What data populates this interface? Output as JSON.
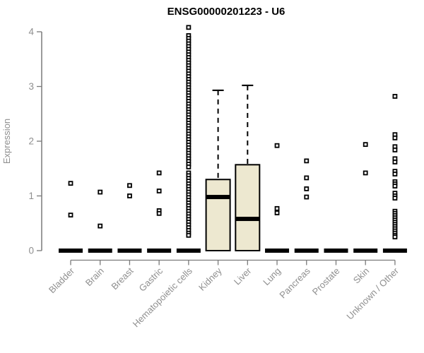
{
  "page": {
    "background": "#ffffff"
  },
  "chart_data": {
    "type": "boxplot",
    "title": "ENSG00000201223 - U6",
    "ylabel": "Expression",
    "xlabel": "",
    "ylim": [
      -0.16,
      4.23
    ],
    "yticks": [
      0,
      1,
      2,
      3,
      4
    ],
    "grid": false,
    "legend": "none",
    "categories": [
      "Bladder",
      "Brain",
      "Breast",
      "Gastric",
      "Hematopoietic cells",
      "Kidney",
      "Liver",
      "Lung",
      "Pancreas",
      "Prostate",
      "Skin",
      "Unknown / Other"
    ],
    "series": [
      {
        "name": "Bladder",
        "q1": 0,
        "median": 0,
        "q3": 0,
        "whisker_low": 0,
        "whisker_high": 0,
        "outliers": [
          1.23,
          0.65
        ]
      },
      {
        "name": "Brain",
        "q1": 0,
        "median": 0,
        "q3": 0,
        "whisker_low": 0,
        "whisker_high": 0,
        "outliers": [
          1.07,
          0.45
        ]
      },
      {
        "name": "Breast",
        "q1": 0,
        "median": 0,
        "q3": 0,
        "whisker_low": 0,
        "whisker_high": 0,
        "outliers": [
          1.19,
          1.0
        ]
      },
      {
        "name": "Gastric",
        "q1": 0,
        "median": 0,
        "q3": 0,
        "whisker_low": 0,
        "whisker_high": 0,
        "outliers": [
          1.42,
          1.09,
          0.73,
          0.68
        ]
      },
      {
        "name": "Hematopoietic cells",
        "q1": 0,
        "median": 0,
        "q3": 0,
        "whisker_low": 0,
        "whisker_high": 0,
        "outliers": [
          4.08,
          3.93,
          3.88,
          3.83,
          3.78,
          3.73,
          3.68,
          3.63,
          3.58,
          3.53,
          3.48,
          3.43,
          3.38,
          3.33,
          3.28,
          3.23,
          3.18,
          3.13,
          3.08,
          3.03,
          2.98,
          2.93,
          2.88,
          2.83,
          2.78,
          2.73,
          2.68,
          2.63,
          2.58,
          2.53,
          2.48,
          2.43,
          2.38,
          2.33,
          2.28,
          2.23,
          2.18,
          2.13,
          2.08,
          2.03,
          1.98,
          1.93,
          1.88,
          1.83,
          1.78,
          1.73,
          1.68,
          1.63,
          1.58,
          1.53,
          1.42,
          1.37,
          1.32,
          1.27,
          1.22,
          1.17,
          1.12,
          1.07,
          1.02,
          0.97,
          0.92,
          0.87,
          0.82,
          0.77,
          0.72,
          0.67,
          0.62,
          0.57,
          0.52,
          0.47,
          0.42,
          0.37,
          0.32,
          0.28
        ]
      },
      {
        "name": "Kidney",
        "q1": 0,
        "median": 0.98,
        "q3": 1.3,
        "whisker_low": 0,
        "whisker_high": 2.93,
        "outliers": []
      },
      {
        "name": "Liver",
        "q1": 0,
        "median": 0.58,
        "q3": 1.57,
        "whisker_low": 0,
        "whisker_high": 3.02,
        "outliers": []
      },
      {
        "name": "Lung",
        "q1": 0,
        "median": 0,
        "q3": 0,
        "whisker_low": 0,
        "whisker_high": 0,
        "outliers": [
          1.92,
          0.77,
          0.69
        ]
      },
      {
        "name": "Pancreas",
        "q1": 0,
        "median": 0,
        "q3": 0,
        "whisker_low": 0,
        "whisker_high": 0,
        "outliers": [
          1.64,
          1.33,
          1.13,
          0.98
        ]
      },
      {
        "name": "Prostate",
        "q1": 0,
        "median": 0,
        "q3": 0,
        "whisker_low": 0,
        "whisker_high": 0,
        "outliers": []
      },
      {
        "name": "Skin",
        "q1": 0,
        "median": 0,
        "q3": 0,
        "whisker_low": 0,
        "whisker_high": 0,
        "outliers": [
          1.94,
          1.42
        ]
      },
      {
        "name": "Unknown / Other",
        "q1": 0,
        "median": 0,
        "q3": 0,
        "whisker_low": 0,
        "whisker_high": 0,
        "outliers": [
          2.82,
          2.12,
          2.06,
          1.9,
          1.84,
          1.68,
          1.62,
          1.45,
          1.4,
          1.26,
          1.22,
          1.18,
          1.05,
          1.0,
          0.96,
          0.72,
          0.68,
          0.64,
          0.6,
          0.56,
          0.52,
          0.48,
          0.44,
          0.4,
          0.36,
          0.32,
          0.28,
          0.25
        ]
      }
    ],
    "colors": {
      "box_fill": "#ede8d0",
      "box_stroke": "#000000",
      "axis": "#7a7a7a",
      "tick_text": "#8f8f8f",
      "title_text": "#000000"
    }
  }
}
